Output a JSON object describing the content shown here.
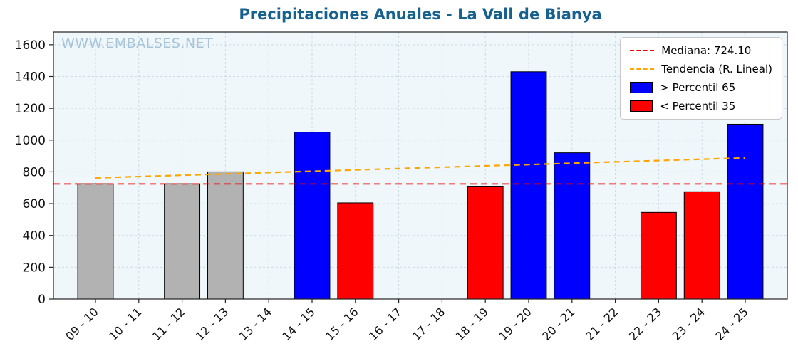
{
  "title": "Precipitaciones Anuales - La Vall de Bianya",
  "watermark": "WWW.EMBALSES.NET",
  "legend": {
    "median_label": "Mediana: 724.10",
    "trend_label": "Tendencia (R. Lineal)",
    "p65_label": "> Percentil 65",
    "p35_label": "< Percentil 35"
  },
  "chart_data": {
    "type": "bar",
    "title": "Precipitaciones Anuales - La Vall de Bianya",
    "categories": [
      "09 - 10",
      "10 - 11",
      "11 - 12",
      "12 - 13",
      "13 - 14",
      "14 - 15",
      "15 - 16",
      "16 - 17",
      "17 - 18",
      "18 - 19",
      "19 - 20",
      "20 - 21",
      "21 - 22",
      "22 - 23",
      "23 - 24",
      "24 - 25"
    ],
    "values": [
      725,
      null,
      725,
      800,
      null,
      1050,
      605,
      null,
      null,
      710,
      1430,
      920,
      null,
      545,
      675,
      1100
    ],
    "bar_color_keys": [
      "gray",
      null,
      "gray",
      "gray",
      null,
      "blue",
      "red",
      null,
      null,
      "red",
      "blue",
      "blue",
      null,
      "red",
      "red",
      "blue"
    ],
    "median": 724.1,
    "trend_linear": {
      "start_value": 762,
      "end_value": 888
    },
    "ylim": [
      0,
      1680
    ],
    "yticks": [
      0,
      200,
      400,
      600,
      800,
      1000,
      1200,
      1400,
      1600
    ],
    "grid": true,
    "legend_position": "upper right",
    "xlabel": "",
    "ylabel": "",
    "colors": {
      "gray": "#b2b2b2",
      "blue": "#0000ff",
      "red": "#ff0000",
      "median_line": "#f00000",
      "trend_line": "#ffa500",
      "plot_bg": "#eff7fa",
      "grid_line": "#c9dbe4",
      "axis": "#222222",
      "bar_edge": "#000000",
      "title": "#17618f",
      "watermark": "#a7c4d9",
      "tick_text": "#111111"
    }
  }
}
